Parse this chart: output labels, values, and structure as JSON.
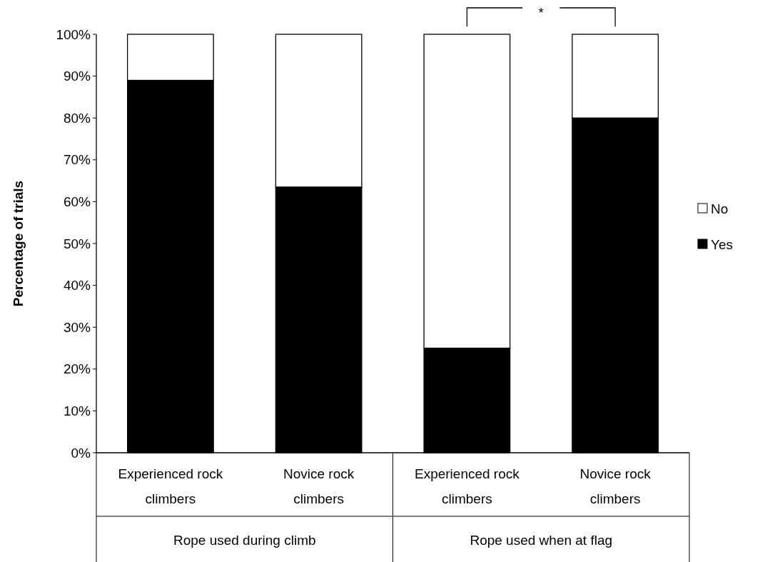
{
  "chart_data": {
    "type": "bar",
    "stacked": true,
    "ylabel": "Percentage of trials",
    "categories": [
      "Experienced rock climbers",
      "Novice rock climbers",
      "Experienced rock climbers",
      "Novice rock climbers"
    ],
    "series": [
      {
        "name": "Yes",
        "color": "#000000",
        "values": [
          89,
          63.5,
          25,
          80
        ]
      },
      {
        "name": "No",
        "color": "#ffffff",
        "values": [
          11,
          36.5,
          75,
          20
        ]
      }
    ],
    "ylim": [
      0,
      100
    ],
    "yticks": [
      {
        "value": 0,
        "label": "0%"
      },
      {
        "value": 10,
        "label": "10%"
      },
      {
        "value": 20,
        "label": "20%"
      },
      {
        "value": 30,
        "label": "30%"
      },
      {
        "value": 40,
        "label": "40%"
      },
      {
        "value": 50,
        "label": "50%"
      },
      {
        "value": 60,
        "label": "60%"
      },
      {
        "value": 70,
        "label": "70%"
      },
      {
        "value": 80,
        "label": "80%"
      },
      {
        "value": 90,
        "label": "90%"
      },
      {
        "value": 100,
        "label": "100%"
      }
    ],
    "annotations": [
      "*",
      "Rope used during climb",
      "Rope used when at flag"
    ],
    "legend": "right",
    "grid": false
  }
}
